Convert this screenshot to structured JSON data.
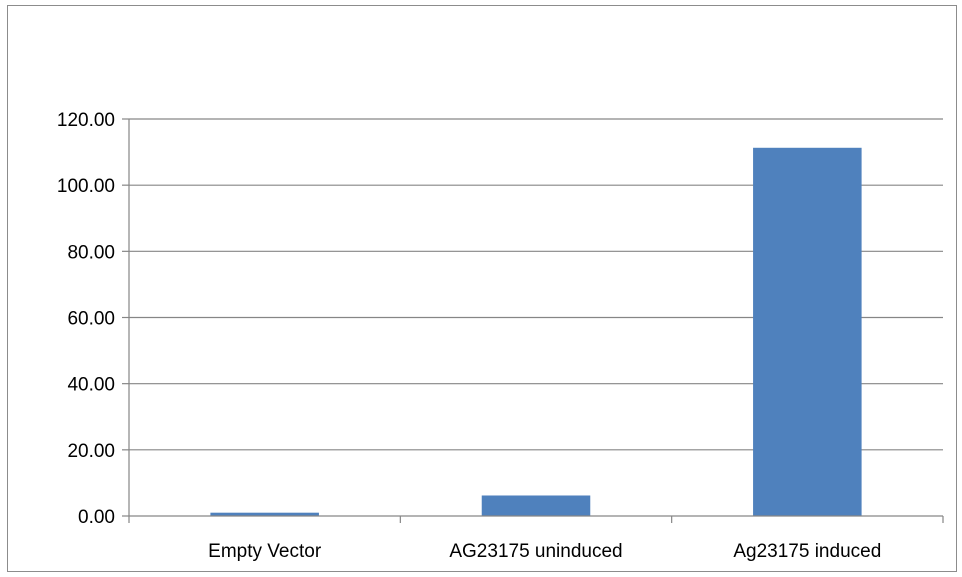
{
  "chart_data": {
    "type": "bar",
    "title": "",
    "xlabel": "",
    "ylabel": "",
    "categories": [
      "Empty Vector",
      "AG23175 uninduced",
      "Ag23175 induced"
    ],
    "values": [
      1.0,
      6.2,
      111.3
    ],
    "ylim": [
      0,
      120
    ],
    "y_ticks": [
      "0.00",
      "20.00",
      "40.00",
      "60.00",
      "80.00",
      "100.00",
      "120.00"
    ],
    "y_tick_values": [
      0,
      20,
      40,
      60,
      80,
      100,
      120
    ],
    "grid": true,
    "legend": "none",
    "bar_color": "#4f81bd",
    "grid_color": "#868686"
  }
}
